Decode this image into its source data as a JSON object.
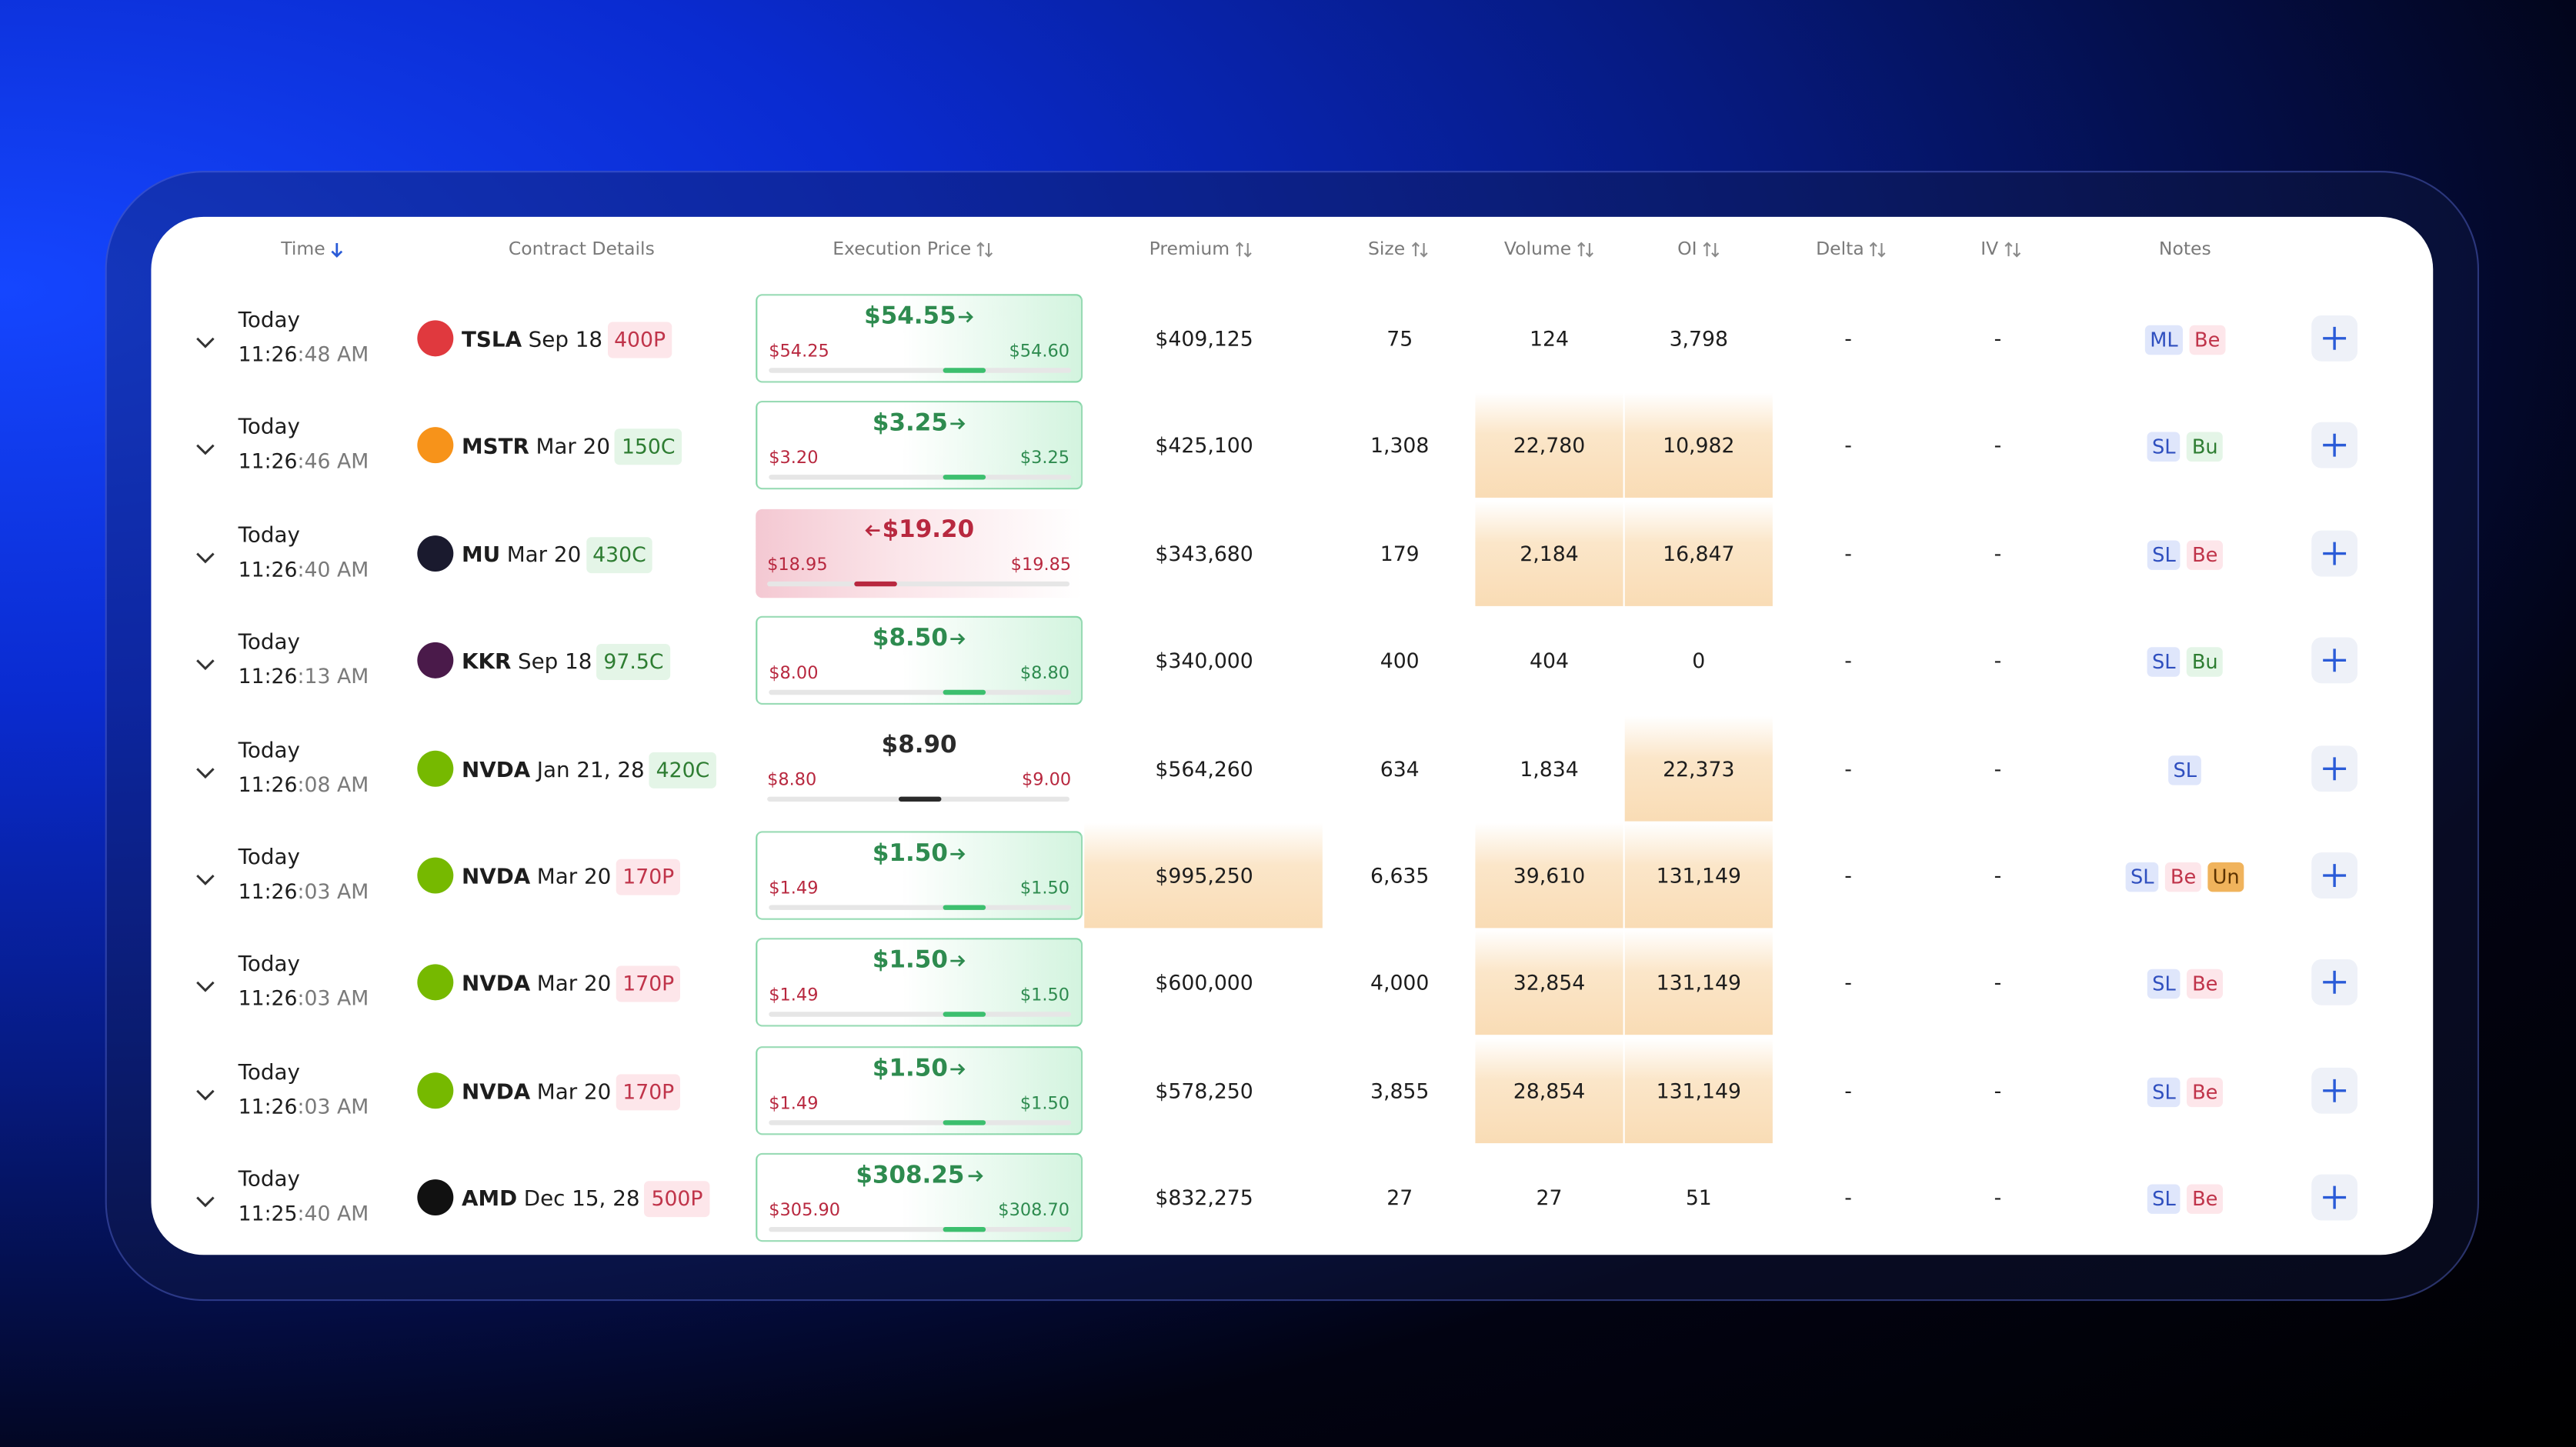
{
  "header": {
    "columns": [
      "Time",
      "Contract Details",
      "Execution Price",
      "Premium",
      "Size",
      "Volume",
      "OI",
      "Delta",
      "IV",
      "Notes"
    ]
  },
  "rows": [
    {
      "day": "Today",
      "time_main": "11:26",
      "time_rest": ":48 AM",
      "ticker": "TSLA",
      "date": "Sep 18",
      "strike": "400P",
      "strike_tone": "red",
      "logo": "#e0393e",
      "price": "$54.55",
      "bid": "$54.25",
      "ask": "$54.60",
      "trend": "up",
      "premium": "$409,125",
      "size": "75",
      "volume": "124",
      "oi": "3,798",
      "delta": "-",
      "iv": "-",
      "highlight": [],
      "notes": [
        {
          "label": "ML",
          "tone": "blue"
        },
        {
          "label": "Be",
          "tone": "red"
        }
      ]
    },
    {
      "day": "Today",
      "time_main": "11:26",
      "time_rest": ":46 AM",
      "ticker": "MSTR",
      "date": "Mar 20",
      "strike": "150C",
      "strike_tone": "green",
      "logo": "#f7931a",
      "price": "$3.25",
      "bid": "$3.20",
      "ask": "$3.25",
      "trend": "up",
      "premium": "$425,100",
      "size": "1,308",
      "volume": "22,780",
      "oi": "10,982",
      "delta": "-",
      "iv": "-",
      "highlight": [
        "volume",
        "oi"
      ],
      "notes": [
        {
          "label": "SL",
          "tone": "blue"
        },
        {
          "label": "Bu",
          "tone": "green"
        }
      ]
    },
    {
      "day": "Today",
      "time_main": "11:26",
      "time_rest": ":40 AM",
      "ticker": "MU",
      "date": "Mar 20",
      "strike": "430C",
      "strike_tone": "green",
      "logo": "#1a1a2e",
      "price": "$19.20",
      "bid": "$18.95",
      "ask": "$19.85",
      "trend": "down",
      "premium": "$343,680",
      "size": "179",
      "volume": "2,184",
      "oi": "16,847",
      "delta": "-",
      "iv": "-",
      "highlight": [
        "volume",
        "oi"
      ],
      "notes": [
        {
          "label": "SL",
          "tone": "blue"
        },
        {
          "label": "Be",
          "tone": "red"
        }
      ]
    },
    {
      "day": "Today",
      "time_main": "11:26",
      "time_rest": ":13 AM",
      "ticker": "KKR",
      "date": "Sep 18",
      "strike": "97.5C",
      "strike_tone": "green",
      "logo": "#4a1a4a",
      "price": "$8.50",
      "bid": "$8.00",
      "ask": "$8.80",
      "trend": "up",
      "premium": "$340,000",
      "size": "400",
      "volume": "404",
      "oi": "0",
      "delta": "-",
      "iv": "-",
      "highlight": [],
      "notes": [
        {
          "label": "SL",
          "tone": "blue"
        },
        {
          "label": "Bu",
          "tone": "green"
        }
      ]
    },
    {
      "day": "Today",
      "time_main": "11:26",
      "time_rest": ":08 AM",
      "ticker": "NVDA",
      "date": "Jan 21, 28",
      "strike": "420C",
      "strike_tone": "green",
      "logo": "#76b900",
      "price": "$8.90",
      "bid": "$8.80",
      "ask": "$9.00",
      "trend": "flat",
      "premium": "$564,260",
      "size": "634",
      "volume": "1,834",
      "oi": "22,373",
      "delta": "-",
      "iv": "-",
      "highlight": [
        "oi"
      ],
      "notes": [
        {
          "label": "SL",
          "tone": "blue"
        }
      ]
    },
    {
      "day": "Today",
      "time_main": "11:26",
      "time_rest": ":03 AM",
      "ticker": "NVDA",
      "date": "Mar 20",
      "strike": "170P",
      "strike_tone": "red",
      "logo": "#76b900",
      "price": "$1.50",
      "bid": "$1.49",
      "ask": "$1.50",
      "trend": "up",
      "premium": "$995,250",
      "size": "6,635",
      "volume": "39,610",
      "oi": "131,149",
      "delta": "-",
      "iv": "-",
      "highlight": [
        "premium",
        "volume",
        "oi"
      ],
      "notes": [
        {
          "label": "SL",
          "tone": "blue"
        },
        {
          "label": "Be",
          "tone": "red"
        },
        {
          "label": "Un",
          "tone": "orange"
        }
      ]
    },
    {
      "day": "Today",
      "time_main": "11:26",
      "time_rest": ":03 AM",
      "ticker": "NVDA",
      "date": "Mar 20",
      "strike": "170P",
      "strike_tone": "red",
      "logo": "#76b900",
      "price": "$1.50",
      "bid": "$1.49",
      "ask": "$1.50",
      "trend": "up",
      "premium": "$600,000",
      "size": "4,000",
      "volume": "32,854",
      "oi": "131,149",
      "delta": "-",
      "iv": "-",
      "highlight": [
        "volume",
        "oi"
      ],
      "notes": [
        {
          "label": "SL",
          "tone": "blue"
        },
        {
          "label": "Be",
          "tone": "red"
        }
      ]
    },
    {
      "day": "Today",
      "time_main": "11:26",
      "time_rest": ":03 AM",
      "ticker": "NVDA",
      "date": "Mar 20",
      "strike": "170P",
      "strike_tone": "red",
      "logo": "#76b900",
      "price": "$1.50",
      "bid": "$1.49",
      "ask": "$1.50",
      "trend": "up",
      "premium": "$578,250",
      "size": "3,855",
      "volume": "28,854",
      "oi": "131,149",
      "delta": "-",
      "iv": "-",
      "highlight": [
        "volume",
        "oi"
      ],
      "notes": [
        {
          "label": "SL",
          "tone": "blue"
        },
        {
          "label": "Be",
          "tone": "red"
        }
      ]
    },
    {
      "day": "Today",
      "time_main": "11:25",
      "time_rest": ":40 AM",
      "ticker": "AMD",
      "date": "Dec 15, 28",
      "strike": "500P",
      "strike_tone": "red",
      "logo": "#111111",
      "price": "$308.25",
      "bid": "$305.90",
      "ask": "$308.70",
      "trend": "up",
      "premium": "$832,275",
      "size": "27",
      "volume": "27",
      "oi": "51",
      "delta": "-",
      "iv": "-",
      "highlight": [],
      "notes": [
        {
          "label": "SL",
          "tone": "blue"
        },
        {
          "label": "Be",
          "tone": "red"
        }
      ]
    }
  ]
}
